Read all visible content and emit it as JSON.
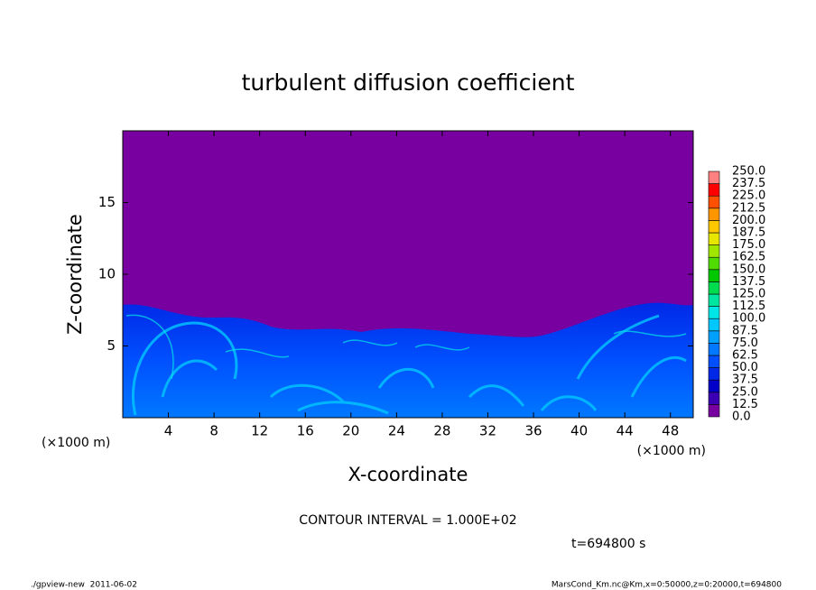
{
  "chart_data": {
    "type": "contour",
    "title": "turbulent diffusion coefficient",
    "x_label": "X-coordinate",
    "y_label": "Z-coordinate",
    "x_unit": "(×1000 m)",
    "xlim": [
      0,
      50
    ],
    "xticks": [
      4,
      8,
      12,
      16,
      20,
      24,
      28,
      32,
      36,
      40,
      44,
      48
    ],
    "ylim": [
      0,
      20
    ],
    "yticks": [
      5,
      10,
      15
    ],
    "colorbar": {
      "levels": [
        {
          "value": 0,
          "label": "0.0"
        },
        {
          "value": 12.5,
          "label": "12.5"
        },
        {
          "value": 25,
          "label": "25.0"
        },
        {
          "value": 37.5,
          "label": "37.5"
        },
        {
          "value": 50,
          "label": "50.0"
        },
        {
          "value": 62.5,
          "label": "62.5"
        },
        {
          "value": 75,
          "label": "75.0"
        },
        {
          "value": 87.5,
          "label": "87.5"
        },
        {
          "value": 100,
          "label": "100.0"
        },
        {
          "value": 112.5,
          "label": "112.5"
        },
        {
          "value": 125,
          "label": "125.0"
        },
        {
          "value": 137.5,
          "label": "137.5"
        },
        {
          "value": 150,
          "label": "150.0"
        },
        {
          "value": 162.5,
          "label": "162.5"
        },
        {
          "value": 175,
          "label": "175.0"
        },
        {
          "value": 187.5,
          "label": "187.5"
        },
        {
          "value": 200,
          "label": "200.0"
        },
        {
          "value": 212.5,
          "label": "212.5"
        },
        {
          "value": 225,
          "label": "225.0"
        },
        {
          "value": 237.5,
          "label": "237.5"
        },
        {
          "value": 250,
          "label": "250.0"
        }
      ],
      "colors": [
        "#7800a0",
        "#3c00b4",
        "#0000c8",
        "#0028e6",
        "#0050ff",
        "#0078ff",
        "#00a0ff",
        "#00c8ff",
        "#00e6e6",
        "#00e6a0",
        "#00dc50",
        "#00c800",
        "#50dc00",
        "#a0e600",
        "#e6e600",
        "#ffc800",
        "#ff9600",
        "#ff5000",
        "#ff0000",
        "#ff8080"
      ]
    },
    "contour_interval": "CONTOUR INTERVAL = 1.000E+02",
    "time_label": "t=694800 s",
    "footer_left": "./gpview-new  2011-06-02",
    "footer_right": "MarsCond_Km.nc@Km,x=0:50000,z=0:20000,t=694800"
  }
}
